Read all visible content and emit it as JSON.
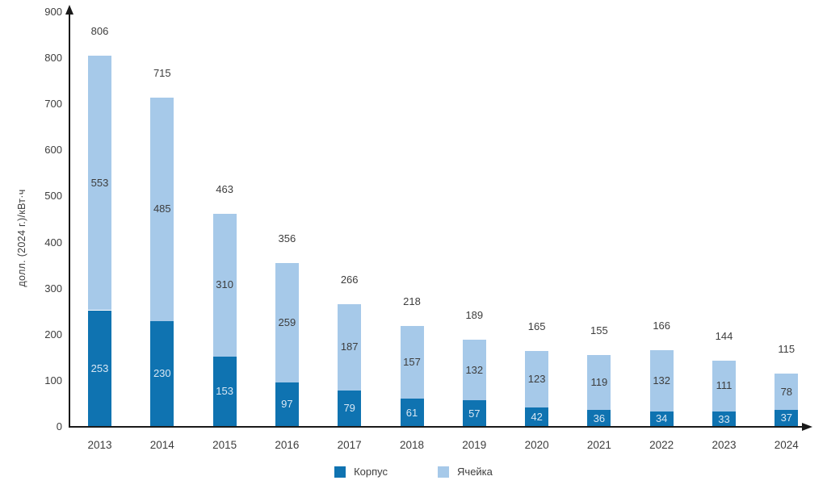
{
  "chart_data": {
    "type": "bar",
    "stacked": true,
    "title": "",
    "ylabel": "долл. (2024 г.)/кВт·ч",
    "xlabel": "",
    "categories": [
      "2013",
      "2014",
      "2015",
      "2016",
      "2017",
      "2018",
      "2019",
      "2020",
      "2021",
      "2022",
      "2023",
      "2024"
    ],
    "series": [
      {
        "key": "pack",
        "name": "Корпус",
        "color": "#0f73b1",
        "label_color": "#d8e7f4",
        "values": [
          253,
          230,
          153,
          97,
          79,
          61,
          57,
          42,
          36,
          34,
          33,
          37
        ]
      },
      {
        "key": "cell",
        "name": "Ячейка",
        "color": "#a6c9e9",
        "label_color": "#3d3d3d",
        "values": [
          553,
          485,
          310,
          259,
          187,
          157,
          132,
          123,
          119,
          132,
          111,
          78
        ]
      }
    ],
    "totals": [
      806,
      715,
      463,
      356,
      266,
      218,
      189,
      165,
      155,
      166,
      144,
      115
    ],
    "ylim": [
      0,
      900
    ],
    "yticks": [
      0,
      100,
      200,
      300,
      400,
      500,
      600,
      700,
      800,
      900
    ],
    "grid": false,
    "legend_position": "bottom"
  },
  "colors": {
    "axis": "#1a1a1a",
    "text": "#3d3d3d",
    "background": "#ffffff"
  }
}
